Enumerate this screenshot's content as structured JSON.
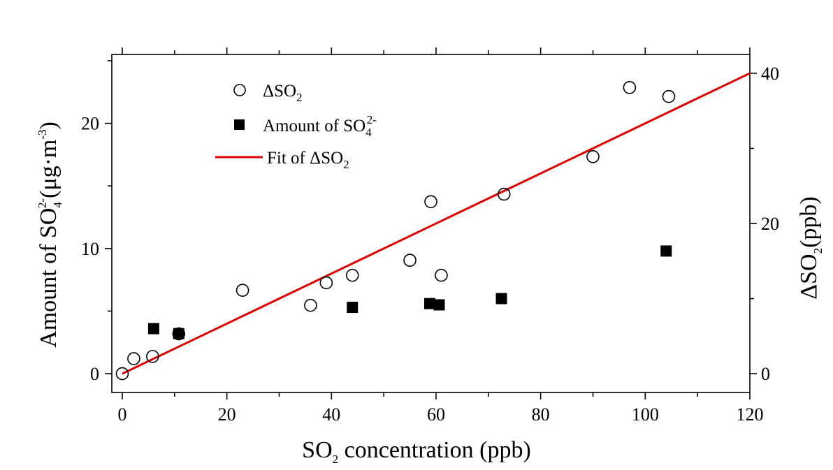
{
  "chart_data": {
    "type": "scatter",
    "title": "",
    "xlim": [
      -2,
      120
    ],
    "ylim_left": [
      -1.5,
      25.5
    ],
    "ylim_right": [
      -2.5,
      42.5
    ],
    "grid": false,
    "legend_position": "top-left",
    "x_ticks": [
      0,
      20,
      40,
      60,
      80,
      100,
      120
    ],
    "y_left_ticks": [
      0,
      10,
      20
    ],
    "y_right_ticks": [
      0,
      20,
      40
    ],
    "xlabel": {
      "pre": "SO",
      "sub": "2",
      "post": " concentration (ppb)"
    },
    "ylabel_left": {
      "pre": "Amount of SO",
      "sub": "4",
      "sup": "2-",
      "mid": "(μg·m",
      "sup2": "-3",
      "post": ")"
    },
    "ylabel_right": {
      "pre": "ΔSO",
      "sub": "2",
      "post": "(ppb)"
    },
    "series": [
      {
        "name": {
          "pre": "ΔSO",
          "sub": "2",
          "sup": ""
        },
        "axis": "right",
        "marker": "open-circle",
        "color": "#000000",
        "points": [
          [
            0,
            0
          ],
          [
            2.2,
            2.0
          ],
          [
            5.8,
            2.3
          ],
          [
            10.8,
            5.3
          ],
          [
            23,
            11.1
          ],
          [
            36,
            9.1
          ],
          [
            39,
            12.1
          ],
          [
            44,
            13.1
          ],
          [
            55,
            15.1
          ],
          [
            59,
            22.9
          ],
          [
            61,
            13.1
          ],
          [
            73,
            23.9
          ],
          [
            90,
            28.9
          ],
          [
            97,
            38.1
          ],
          [
            104.5,
            36.9
          ]
        ]
      },
      {
        "name": {
          "pre": "Amount of SO",
          "sub": "4",
          "sup": "2-"
        },
        "axis": "left",
        "marker": "filled-square",
        "color": "#000000",
        "points": [
          [
            6,
            3.6
          ],
          [
            10.8,
            3.2
          ],
          [
            44,
            5.3
          ],
          [
            58.8,
            5.6
          ],
          [
            60.6,
            5.5
          ],
          [
            72.5,
            6.0
          ],
          [
            104,
            9.8
          ]
        ]
      },
      {
        "name": {
          "pre": "Fit of ΔSO",
          "sub": "2",
          "sup": ""
        },
        "axis": "right",
        "marker": "line",
        "color": "#e00000",
        "points": [
          [
            0,
            0
          ],
          [
            120,
            40
          ]
        ]
      }
    ]
  }
}
